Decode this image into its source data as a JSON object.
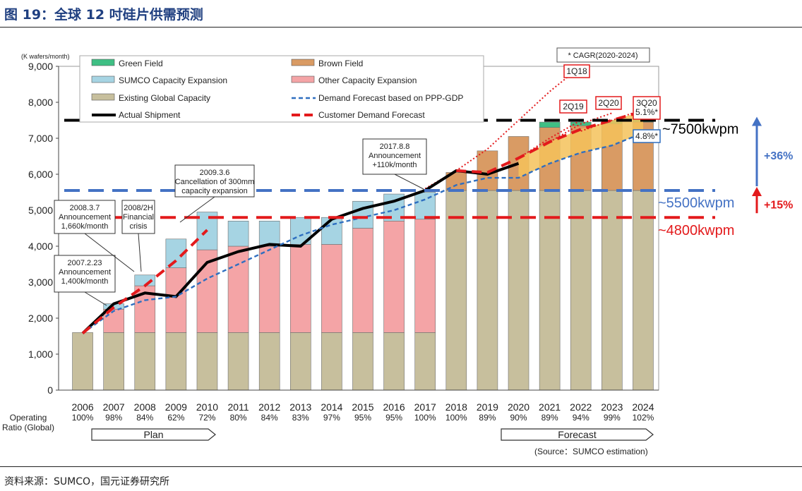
{
  "header": {
    "title": "图 19：全球 12 吋硅片供需预测"
  },
  "footer": {
    "source": "资料来源：SUMCO，国元证券研究所"
  },
  "chart_data": {
    "type": "bar",
    "yunit": "(K wafers/month)",
    "ylim": [
      0,
      9000
    ],
    "yticks": [
      "0",
      "1,000",
      "2,000",
      "3,000",
      "4,000",
      "5,000",
      "6,000",
      "7,000",
      "8,000",
      "9,000"
    ],
    "categories": [
      "2006",
      "2007",
      "2008",
      "2009",
      "2010",
      "2011",
      "2012",
      "2013",
      "2014",
      "2015",
      "2016",
      "2017",
      "2018",
      "2019",
      "2020",
      "2021",
      "2022",
      "2023",
      "2024"
    ],
    "operating_ratio_label": "Operating\nRatio (Global)",
    "operating_ratio": [
      "100%",
      "98%",
      "84%",
      "62%",
      "72%",
      "80%",
      "84%",
      "83%",
      "97%",
      "95%",
      "95%",
      "100%",
      "100%",
      "89%",
      "90%",
      "89%",
      "94%",
      "99%",
      "102%"
    ],
    "series": [
      {
        "name": "Existing Global Capacity",
        "color": "#c7bf9d",
        "values": [
          1600,
          1600,
          1600,
          1600,
          1600,
          1600,
          1600,
          1600,
          1600,
          1600,
          1600,
          1600,
          5550,
          5550,
          5550,
          5550,
          5550,
          5550,
          5550
        ]
      },
      {
        "name": "Other Capacity Expansion",
        "color": "#f4a4a6",
        "values": [
          0,
          650,
          1300,
          1800,
          2300,
          2400,
          2400,
          2450,
          2450,
          2900,
          3100,
          3150,
          0,
          0,
          0,
          0,
          0,
          0,
          0
        ]
      },
      {
        "name": "SUMCO Capacity Expansion",
        "color": "#a6d4e3",
        "values": [
          0,
          150,
          300,
          800,
          1050,
          700,
          700,
          750,
          750,
          750,
          750,
          750,
          0,
          0,
          0,
          0,
          0,
          0,
          0
        ]
      },
      {
        "name": "Brown Field",
        "color": "#d99b64",
        "values": [
          0,
          0,
          0,
          0,
          0,
          0,
          0,
          0,
          0,
          0,
          0,
          0,
          500,
          1100,
          1500,
          1750,
          1800,
          1850,
          1900
        ]
      },
      {
        "name": "Green Field",
        "color": "#3fbf84",
        "values": [
          0,
          0,
          0,
          0,
          0,
          0,
          0,
          0,
          0,
          0,
          0,
          0,
          0,
          0,
          0,
          150,
          100,
          100,
          100
        ]
      }
    ],
    "lines": [
      {
        "name": "Actual Shipment",
        "color": "#000000",
        "x": [
          "2006",
          "2007",
          "2008",
          "2009",
          "2010",
          "2011",
          "2012",
          "2013",
          "2014",
          "2015",
          "2016",
          "2017",
          "2018",
          "2019",
          "2020"
        ],
        "values": [
          1580,
          2400,
          2700,
          2600,
          3550,
          3850,
          4050,
          4000,
          4750,
          5050,
          5250,
          5550,
          6100,
          6000,
          6300
        ]
      },
      {
        "name": "Demand Forecast based on PPP-GDP",
        "color": "#2f6fc0",
        "x": [
          "2006",
          "2007",
          "2008",
          "2009",
          "2010",
          "2011",
          "2012",
          "2013",
          "2014",
          "2015",
          "2016",
          "2017",
          "2018",
          "2019",
          "2020",
          "2021",
          "2022",
          "2023",
          "2024"
        ],
        "values": [
          1580,
          2200,
          2500,
          2600,
          3100,
          3500,
          3900,
          4300,
          4600,
          4800,
          5000,
          5300,
          5700,
          5900,
          5900,
          6300,
          6600,
          6800,
          7150
        ]
      },
      {
        "name": "Customer Demand Forecast",
        "color": "#e31a1c",
        "x": [
          "2006",
          "2007",
          "2008",
          "2009",
          "2010"
        ],
        "values": [
          1580,
          2300,
          2900,
          3600,
          4450
        ]
      },
      {
        "name": "Customer Demand Forecast",
        "color": "#e31a1c",
        "x": [
          "2018",
          "2019",
          "2020",
          "2021",
          "2022",
          "2023",
          "2024"
        ],
        "values": [
          6100,
          6050,
          6450,
          6900,
          7250,
          7500,
          7750
        ]
      }
    ],
    "forecast_labels": [
      {
        "label": "1Q18",
        "x": [
          "2017",
          "2018",
          "2019",
          "2020",
          "2021",
          "2022"
        ],
        "values": [
          5600,
          6100,
          6700,
          7500,
          8300,
          9000
        ]
      },
      {
        "label": "2Q19",
        "x": [
          "2020",
          "2021",
          "2022"
        ],
        "values": [
          6450,
          7000,
          7500
        ]
      },
      {
        "label": "2Q20",
        "x": [
          "2021",
          "2022",
          "2023"
        ],
        "values": [
          6900,
          7400,
          7700
        ]
      },
      {
        "label": "3Q20\n5.1%*",
        "x": [
          "2022",
          "2023",
          "2024"
        ],
        "values": [
          7200,
          7500,
          7800
        ]
      }
    ],
    "cagr_label": "* CAGR(2020-2024)",
    "gdp_cagr": "4.8%*",
    "annotations": [
      {
        "text": "2007.2.23\nAnnouncement\n1,400k/month"
      },
      {
        "text": "2008.3.7\nAnnouncement\n1,660k/month"
      },
      {
        "text": "2008/2H\nFinancial\ncrisis"
      },
      {
        "text": "2009.3.6\nCancellation of 300mm\ncapacity expansion"
      },
      {
        "text": "2017.8.8\nAnnouncement\n+110k/month"
      }
    ],
    "reference_lines": [
      {
        "value": 7500,
        "label": "~7500kwpm",
        "color": "#000000"
      },
      {
        "value": 5550,
        "label": "~5500kwpm",
        "color": "#4472c4"
      },
      {
        "value": 4800,
        "label": "~4800kwpm",
        "color": "#e31a1c"
      }
    ],
    "growth_arrows": [
      {
        "label": "+36%",
        "color": "#4472c4"
      },
      {
        "label": "+15%",
        "color": "#e31a1c"
      }
    ],
    "phase_labels": {
      "plan": "Plan",
      "forecast": "Forecast"
    },
    "note": "(Source：SUMCO estimation)",
    "legend": [
      "Green Field",
      "Brown Field",
      "SUMCO Capacity Expansion",
      "Other Capacity Expansion",
      "Existing Global Capacity",
      "Demand Forecast based on PPP-GDP",
      "Actual Shipment",
      "Customer Demand Forecast"
    ]
  }
}
